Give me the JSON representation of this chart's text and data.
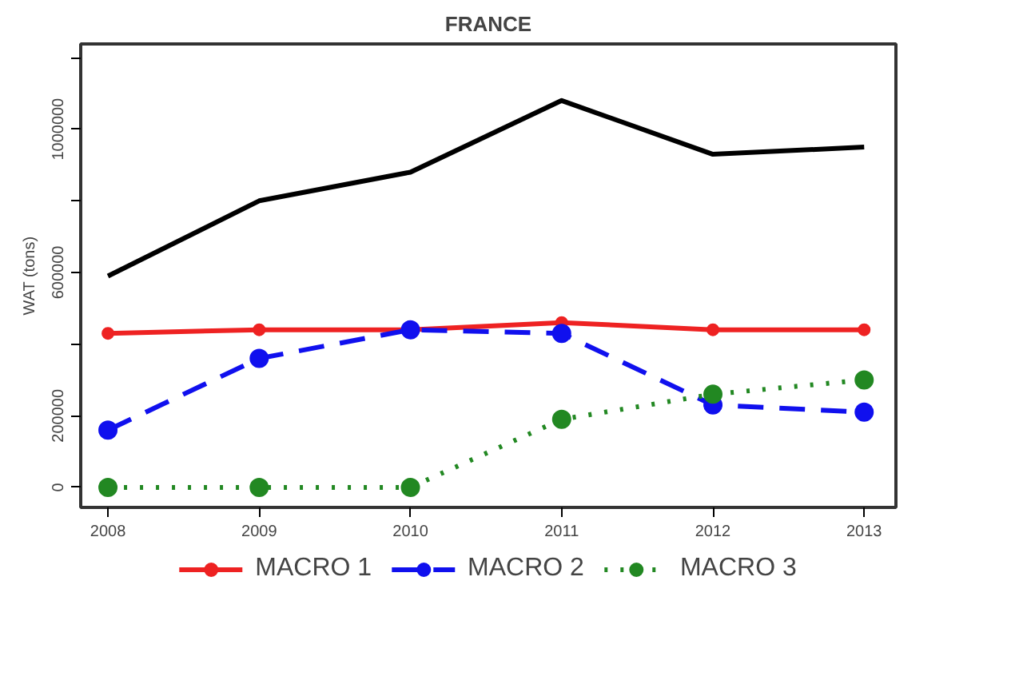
{
  "chart_data": {
    "type": "line",
    "title": "FRANCE",
    "ylabel": "WAT (tons)",
    "x": [
      2008,
      2009,
      2010,
      2011,
      2012,
      2013
    ],
    "xlim": [
      2007.82,
      2013.21
    ],
    "xticks": [
      2008,
      2009,
      2010,
      2011,
      2012,
      2013
    ],
    "ylim": [
      -56000,
      1238000
    ],
    "yticks": [
      0,
      200000,
      {
        "value": 400000,
        "label": null
      },
      600000,
      {
        "value": 800000,
        "label": null
      },
      1000000,
      {
        "value": 1200000,
        "label": null
      }
    ],
    "grid": false,
    "legend": "bottom",
    "series": [
      {
        "color": "#000000",
        "marker": "none",
        "line_style": "solid",
        "values": [
          590000,
          800000,
          880000,
          1080000,
          930000,
          950000
        ]
      },
      {
        "name": "MACRO 1",
        "color": "#ee2222",
        "marker": "circle",
        "line_style": "solid",
        "values": [
          430000,
          440000,
          440000,
          460000,
          440000,
          440000
        ]
      },
      {
        "name": "MACRO 2",
        "color": "#1010ee",
        "marker": "circle",
        "line_style": "dashed",
        "values": [
          160000,
          360000,
          440000,
          430000,
          230000,
          210000
        ]
      },
      {
        "name": "MACRO 3",
        "color": "#228822",
        "marker": "circle",
        "line_style": "dotted",
        "values": [
          0,
          0,
          0,
          190000,
          260000,
          300000
        ]
      }
    ]
  }
}
